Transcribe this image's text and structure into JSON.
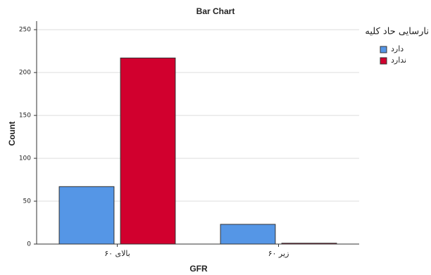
{
  "chart_data": {
    "type": "bar",
    "title": "Bar Chart",
    "x_label": "GFR",
    "y_label": "Count",
    "categories": [
      "بالای ۶۰",
      "زیر ۶۰"
    ],
    "legend_title": "نارسایی حاد کلیه",
    "series": [
      {
        "name": "دارد",
        "color": "#5596e6",
        "values": [
          67,
          23
        ]
      },
      {
        "name": "ندارد",
        "color": "#d1002e",
        "values": [
          217,
          1
        ]
      }
    ],
    "ylim": [
      0,
      260
    ],
    "yticks": [
      0,
      50,
      100,
      150,
      200,
      250
    ],
    "grid": true,
    "legend": "right"
  }
}
